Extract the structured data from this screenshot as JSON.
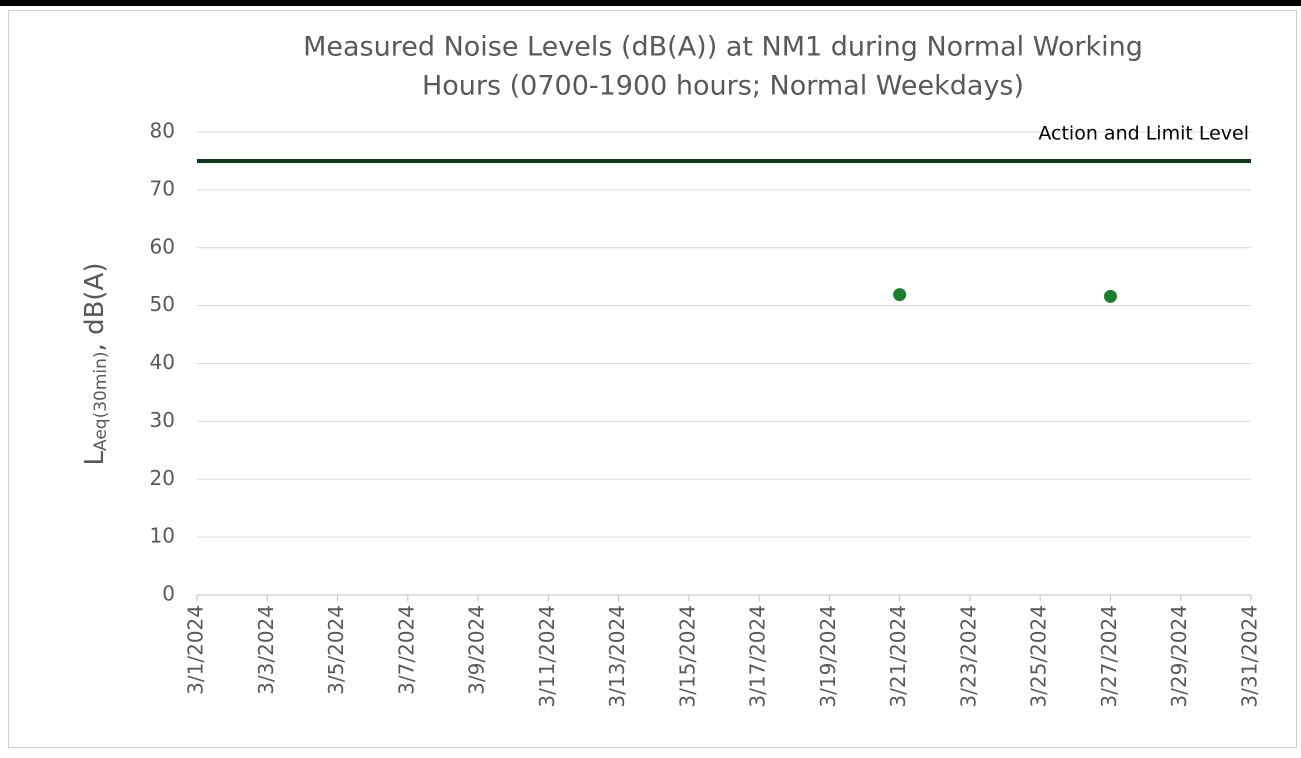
{
  "chart_data": {
    "type": "scatter",
    "title": [
      "Measured Noise Levels (dB(A)) at NM1 during Normal Working",
      "Hours (0700-1900 hours; Normal Weekdays)"
    ],
    "y_label": {
      "main": "L",
      "sub": "Aeq(30min)",
      "rest": ", dB(A)"
    },
    "xlim": [
      "3/1/2024",
      "3/31/2024"
    ],
    "xticks": [
      "3/1/2024",
      "3/3/2024",
      "3/5/2024",
      "3/7/2024",
      "3/9/2024",
      "3/11/2024",
      "3/13/2024",
      "3/15/2024",
      "3/17/2024",
      "3/19/2024",
      "3/21/2024",
      "3/23/2024",
      "3/25/2024",
      "3/27/2024",
      "3/29/2024",
      "3/31/2024"
    ],
    "ylim": [
      0,
      80
    ],
    "yticks": [
      0,
      10,
      20,
      30,
      40,
      50,
      60,
      70,
      80
    ],
    "grid": true,
    "series": [
      {
        "name": "Action and Limit Level",
        "color": "#0e3a1c",
        "mode": "line",
        "x": [
          "3/1/2024",
          "3/31/2024"
        ],
        "values": [
          75,
          75
        ]
      },
      {
        "color": "#1a7f2a",
        "mode": "markers",
        "x": [
          "3/21/2024",
          "3/27/2024"
        ],
        "values": [
          51.9,
          51.6
        ]
      }
    ]
  }
}
